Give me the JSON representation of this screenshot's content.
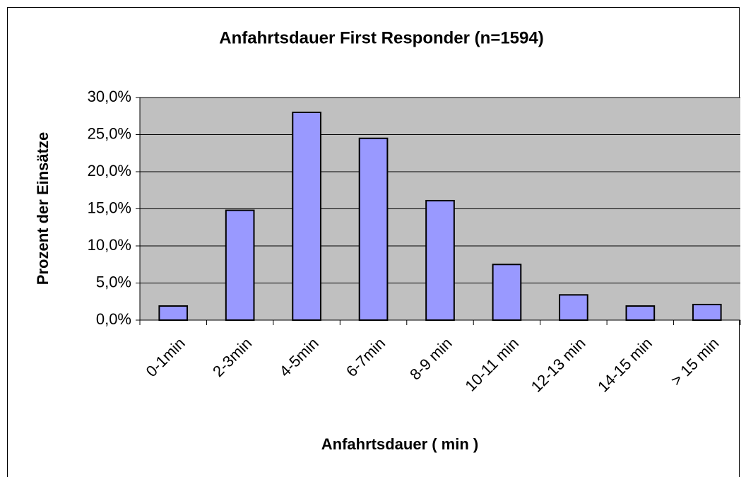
{
  "chart_data": {
    "type": "bar",
    "title": "Anfahrtsdauer First Responder (n=1594)",
    "x_label": "Anfahrtsdauer ( min )",
    "y_label": "Prozent der Einsätze",
    "categories": [
      "0-1min",
      "2-3min",
      "4-5min",
      "6-7min",
      "8-9 min",
      "10-11 min",
      "12-13 min",
      "14-15 min",
      "> 15 min"
    ],
    "values": [
      1.9,
      14.8,
      28.0,
      24.5,
      16.1,
      7.5,
      3.4,
      1.9,
      2.1
    ],
    "color": "#9999ff",
    "ylim": [
      0,
      30
    ],
    "yticks": [
      {
        "value": 0,
        "label": "0,0%"
      },
      {
        "value": 5,
        "label": "5,0%"
      },
      {
        "value": 10,
        "label": "10,0%"
      },
      {
        "value": 15,
        "label": "15,0%"
      },
      {
        "value": 20,
        "label": "20,0%"
      },
      {
        "value": 25,
        "label": "25,0%"
      },
      {
        "value": 30,
        "label": "30,0%"
      }
    ],
    "grid": true
  }
}
